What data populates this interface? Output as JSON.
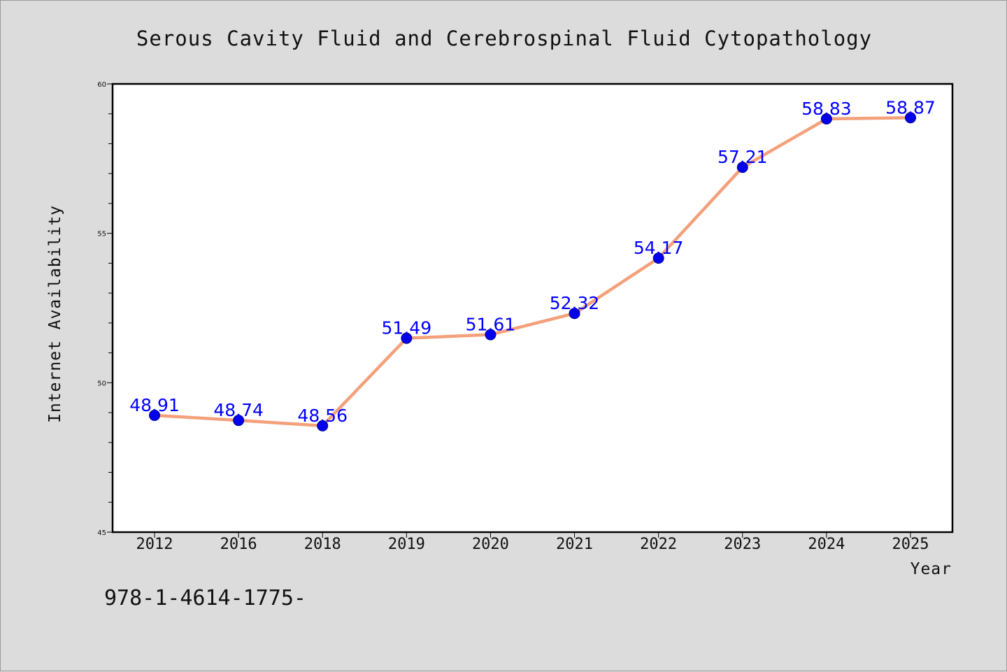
{
  "chart_data": {
    "type": "line",
    "title": "Serous Cavity Fluid and Cerebrospinal Fluid Cytopathology",
    "xlabel": "Year",
    "ylabel": "Internet Availability",
    "categories": [
      "2012",
      "2016",
      "2018",
      "2019",
      "2020",
      "2021",
      "2022",
      "2023",
      "2024",
      "2025"
    ],
    "series": [
      {
        "values": [
          48.91,
          48.74,
          48.56,
          51.49,
          51.61,
          52.32,
          54.17,
          57.21,
          58.83,
          58.87
        ],
        "data_labels": [
          "48.91",
          "48.74",
          "48.56",
          "51.49",
          "51.61",
          "52.32",
          "54.17",
          "57.21",
          "58.83",
          "58.87"
        ]
      }
    ],
    "ylim": [
      45,
      60
    ],
    "yticks": [
      45,
      50,
      55,
      60
    ],
    "ytick_labels": [
      "45",
      "50",
      "55",
      "60"
    ],
    "grid": false,
    "legend": "none"
  },
  "footnote": "978-1-4614-1775-",
  "colors": {
    "line": "#f4a07a",
    "marker": "#0000ee",
    "marker_edge": "#00008b",
    "data_label": "#0000ff",
    "plot_background": "#ffffff",
    "figure_background": "#dcdcdc"
  }
}
